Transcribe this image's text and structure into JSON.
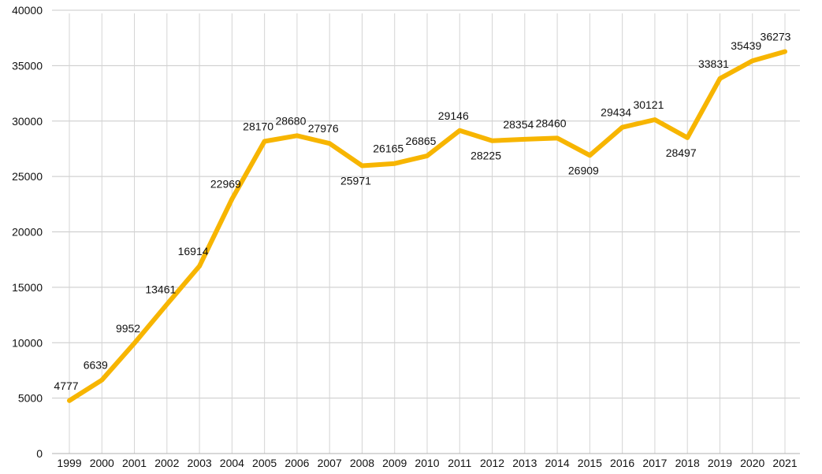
{
  "chart_data": {
    "type": "line",
    "title": "",
    "xlabel": "",
    "ylabel": "",
    "ylim": [
      0,
      40000
    ],
    "y_ticks": [
      "0",
      "5000",
      "10000",
      "15000",
      "20000",
      "25000",
      "30000",
      "35000",
      "40000"
    ],
    "grid": "on",
    "legend": "none",
    "color": "#F7B500",
    "categories": [
      "1999",
      "2000",
      "2001",
      "2002",
      "2003",
      "2004",
      "2005",
      "2006",
      "2007",
      "2008",
      "2009",
      "2010",
      "2011",
      "2012",
      "2013",
      "2014",
      "2015",
      "2016",
      "2017",
      "2018",
      "2019",
      "2020",
      "2021"
    ],
    "series": [
      {
        "values": [
          4777,
          6639,
          9952,
          13461,
          16914,
          22969,
          28170,
          28680,
          27976,
          25971,
          26165,
          26865,
          29146,
          28225,
          28354,
          28460,
          26909,
          29434,
          30121,
          28497,
          33831,
          35439,
          36273
        ],
        "labels": [
          "4777",
          "6639",
          "9952",
          "13461",
          "16914",
          "22969",
          "28170",
          "28680",
          "27976",
          "25971",
          "26165",
          "26865",
          "29146",
          "28225",
          "28354",
          "28460",
          "26909",
          "29434",
          "30121",
          "28497",
          "33831",
          "35439",
          "36273"
        ]
      }
    ]
  }
}
